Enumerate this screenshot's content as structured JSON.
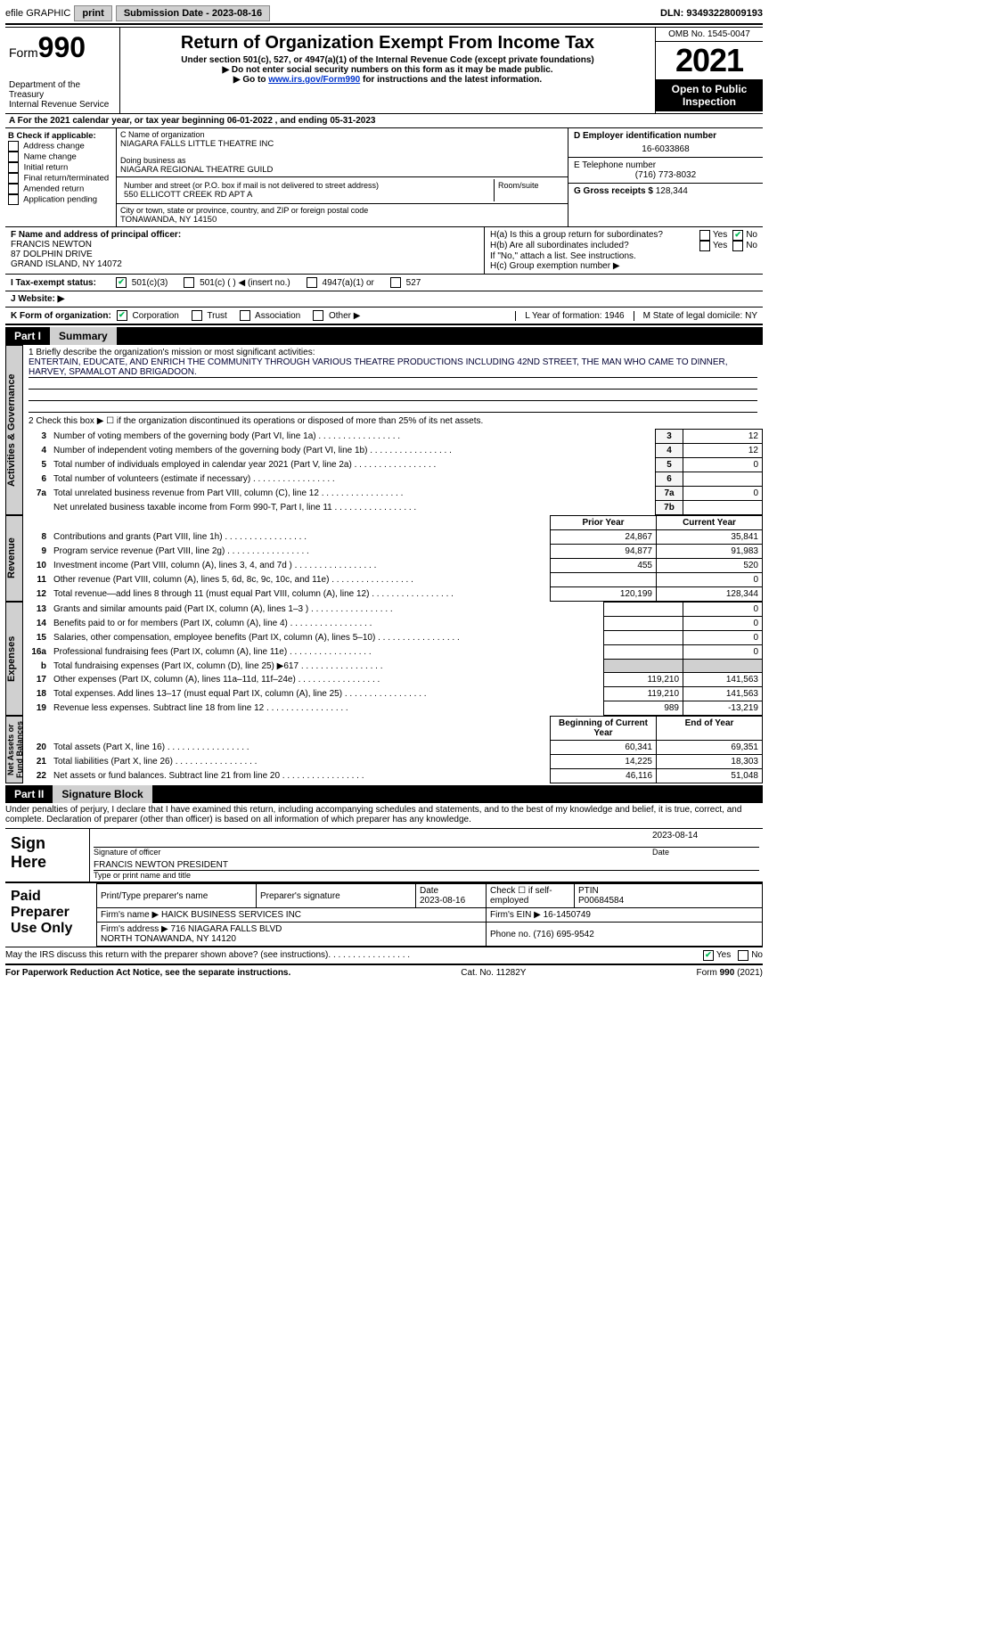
{
  "topbar": {
    "efile": "efile GRAPHIC",
    "print": "print",
    "submission": "Submission Date - 2023-08-16",
    "dln": "DLN: 93493228009193"
  },
  "header": {
    "form_prefix": "Form",
    "form_number": "990",
    "dept": "Department of the Treasury\nInternal Revenue Service",
    "title": "Return of Organization Exempt From Income Tax",
    "sub1": "Under section 501(c), 527, or 4947(a)(1) of the Internal Revenue Code (except private foundations)",
    "sub2": "▶ Do not enter social security numbers on this form as it may be made public.",
    "sub3_pre": "▶ Go to ",
    "sub3_link": "www.irs.gov/Form990",
    "sub3_post": " for instructions and the latest information.",
    "omb": "OMB No. 1545-0047",
    "year": "2021",
    "open": "Open to Public Inspection"
  },
  "row_a": "A For the 2021 calendar year, or tax year beginning 06-01-2022    , and ending 05-31-2023",
  "col_b": {
    "title": "B Check if applicable:",
    "items": [
      "Address change",
      "Name change",
      "Initial return",
      "Final return/terminated",
      "Amended return",
      "Application pending"
    ]
  },
  "col_c": {
    "name_label": "C Name of organization",
    "name": "NIAGARA FALLS LITTLE THEATRE INC",
    "dba_label": "Doing business as",
    "dba": "NIAGARA REGIONAL THEATRE GUILD",
    "street_label": "Number and street (or P.O. box if mail is not delivered to street address)",
    "street": "550 ELLICOTT CREEK RD APT A",
    "room_label": "Room/suite",
    "city_label": "City or town, state or province, country, and ZIP or foreign postal code",
    "city": "TONAWANDA, NY  14150"
  },
  "col_d": {
    "ein_label": "D Employer identification number",
    "ein": "16-6033868",
    "phone_label": "E Telephone number",
    "phone": "(716) 773-8032",
    "gross_label": "G Gross receipts $",
    "gross": "128,344"
  },
  "row_f": {
    "label": "F Name and address of principal officer:",
    "name": "FRANCIS NEWTON",
    "addr1": "87 DOLPHIN DRIVE",
    "addr2": "GRAND ISLAND, NY  14072"
  },
  "row_h": {
    "ha": "H(a)  Is this a group return for subordinates?",
    "hb": "H(b)  Are all subordinates included?",
    "hb_note": "If \"No,\" attach a list. See instructions.",
    "hc": "H(c)  Group exemption number ▶",
    "yes": "Yes",
    "no": "No"
  },
  "row_i": {
    "label": "I   Tax-exempt status:",
    "opts": [
      "501(c)(3)",
      "501(c) (  ) ◀ (insert no.)",
      "4947(a)(1) or",
      "527"
    ]
  },
  "row_j": "J   Website: ▶",
  "row_k": {
    "label": "K Form of organization:",
    "opts": [
      "Corporation",
      "Trust",
      "Association",
      "Other ▶"
    ],
    "l": "L Year of formation: 1946",
    "m": "M State of legal domicile: NY"
  },
  "part1": {
    "num": "Part I",
    "title": "Summary",
    "line1_label": "1   Briefly describe the organization's mission or most significant activities:",
    "line1_text": "ENTERTAIN, EDUCATE, AND ENRICH THE COMMUNITY THROUGH VARIOUS THEATRE PRODUCTIONS INCLUDING 42ND STREET, THE MAN WHO CAME TO DINNER, HARVEY, SPAMALOT AND BRIGADOON.",
    "line2": "2   Check this box ▶ ☐  if the organization discontinued its operations or disposed of more than 25% of its net assets.",
    "rows_ag": [
      {
        "n": "3",
        "t": "Number of voting members of the governing body (Part VI, line 1a)",
        "box": "3",
        "v": "12"
      },
      {
        "n": "4",
        "t": "Number of independent voting members of the governing body (Part VI, line 1b)",
        "box": "4",
        "v": "12"
      },
      {
        "n": "5",
        "t": "Total number of individuals employed in calendar year 2021 (Part V, line 2a)",
        "box": "5",
        "v": "0"
      },
      {
        "n": "6",
        "t": "Total number of volunteers (estimate if necessary)",
        "box": "6",
        "v": ""
      },
      {
        "n": "7a",
        "t": "Total unrelated business revenue from Part VIII, column (C), line 12",
        "box": "7a",
        "v": "0"
      },
      {
        "n": "",
        "t": "Net unrelated business taxable income from Form 990-T, Part I, line 11",
        "box": "7b",
        "v": ""
      }
    ],
    "prior": "Prior Year",
    "current": "Current Year",
    "rows_rev": [
      {
        "n": "8",
        "t": "Contributions and grants (Part VIII, line 1h)",
        "p": "24,867",
        "c": "35,841"
      },
      {
        "n": "9",
        "t": "Program service revenue (Part VIII, line 2g)",
        "p": "94,877",
        "c": "91,983"
      },
      {
        "n": "10",
        "t": "Investment income (Part VIII, column (A), lines 3, 4, and 7d )",
        "p": "455",
        "c": "520"
      },
      {
        "n": "11",
        "t": "Other revenue (Part VIII, column (A), lines 5, 6d, 8c, 9c, 10c, and 11e)",
        "p": "",
        "c": "0"
      },
      {
        "n": "12",
        "t": "Total revenue—add lines 8 through 11 (must equal Part VIII, column (A), line 12)",
        "p": "120,199",
        "c": "128,344"
      }
    ],
    "rows_exp": [
      {
        "n": "13",
        "t": "Grants and similar amounts paid (Part IX, column (A), lines 1–3 )",
        "p": "",
        "c": "0"
      },
      {
        "n": "14",
        "t": "Benefits paid to or for members (Part IX, column (A), line 4)",
        "p": "",
        "c": "0"
      },
      {
        "n": "15",
        "t": "Salaries, other compensation, employee benefits (Part IX, column (A), lines 5–10)",
        "p": "",
        "c": "0"
      },
      {
        "n": "16a",
        "t": "Professional fundraising fees (Part IX, column (A), line 11e)",
        "p": "",
        "c": "0"
      },
      {
        "n": "b",
        "t": "Total fundraising expenses (Part IX, column (D), line 25) ▶617",
        "p": "shade",
        "c": "shade"
      },
      {
        "n": "17",
        "t": "Other expenses (Part IX, column (A), lines 11a–11d, 11f–24e)",
        "p": "119,210",
        "c": "141,563"
      },
      {
        "n": "18",
        "t": "Total expenses. Add lines 13–17 (must equal Part IX, column (A), line 25)",
        "p": "119,210",
        "c": "141,563"
      },
      {
        "n": "19",
        "t": "Revenue less expenses. Subtract line 18 from line 12",
        "p": "989",
        "c": "-13,219"
      }
    ],
    "boy": "Beginning of Current Year",
    "eoy": "End of Year",
    "rows_nafb": [
      {
        "n": "20",
        "t": "Total assets (Part X, line 16)",
        "p": "60,341",
        "c": "69,351"
      },
      {
        "n": "21",
        "t": "Total liabilities (Part X, line 26)",
        "p": "14,225",
        "c": "18,303"
      },
      {
        "n": "22",
        "t": "Net assets or fund balances. Subtract line 21 from line 20",
        "p": "46,116",
        "c": "51,048"
      }
    ],
    "labels": {
      "ag": "Activities & Governance",
      "rev": "Revenue",
      "exp": "Expenses",
      "nafb": "Net Assets or\nFund Balances"
    }
  },
  "part2": {
    "num": "Part II",
    "title": "Signature Block",
    "decl": "Under penalties of perjury, I declare that I have examined this return, including accompanying schedules and statements, and to the best of my knowledge and belief, it is true, correct, and complete. Declaration of preparer (other than officer) is based on all information of which preparer has any knowledge.",
    "sign_here": "Sign Here",
    "sig_officer": "Signature of officer",
    "sig_date": "2023-08-14",
    "date_lbl": "Date",
    "name_title": "FRANCIS NEWTON  PRESIDENT",
    "type_lbl": "Type or print name and title",
    "paid": "Paid Preparer Use Only",
    "prep_name_lbl": "Print/Type preparer's name",
    "prep_sig_lbl": "Preparer's signature",
    "prep_date_lbl": "Date",
    "prep_date": "2023-08-16",
    "self_emp": "Check ☐ if self-employed",
    "ptin_lbl": "PTIN",
    "ptin": "P00684584",
    "firm_name_lbl": "Firm's name    ▶",
    "firm_name": "HAICK BUSINESS SERVICES INC",
    "firm_ein_lbl": "Firm's EIN ▶",
    "firm_ein": "16-1450749",
    "firm_addr_lbl": "Firm's address ▶",
    "firm_addr": "716 NIAGARA FALLS BLVD\nNORTH TONAWANDA, NY  14120",
    "firm_phone_lbl": "Phone no.",
    "firm_phone": "(716) 695-9542",
    "discuss": "May the IRS discuss this return with the preparer shown above? (see instructions)",
    "yes": "Yes",
    "no": "No"
  },
  "footer": {
    "pra": "For Paperwork Reduction Act Notice, see the separate instructions.",
    "cat": "Cat. No. 11282Y",
    "form": "Form 990 (2021)"
  }
}
